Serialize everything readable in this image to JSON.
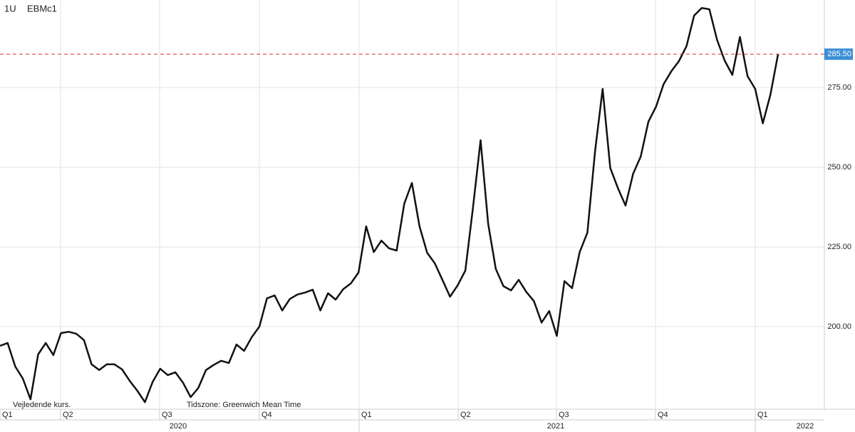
{
  "chart_data": {
    "type": "line",
    "interval": "1U",
    "symbol": "EBMc1",
    "note": "Vejledende kurs.",
    "timezone": "Tidszone: Greenwich Mean Time",
    "color": "#111111",
    "grid": true,
    "values": [
      194.0,
      194.9,
      187.5,
      183.7,
      177.2,
      191.3,
      194.9,
      191.1,
      198.0,
      198.4,
      197.8,
      195.8,
      188.2,
      186.4,
      188.2,
      188.2,
      186.6,
      183.0,
      179.9,
      176.3,
      182.6,
      186.8,
      184.8,
      185.7,
      182.4,
      177.9,
      180.8,
      186.4,
      188.0,
      189.3,
      188.6,
      194.4,
      192.4,
      196.7,
      200.0,
      208.9,
      209.8,
      205.1,
      208.7,
      210.1,
      210.7,
      211.6,
      205.1,
      210.5,
      208.5,
      211.8,
      213.6,
      217.0,
      231.5,
      223.4,
      227.0,
      224.6,
      223.9,
      238.6,
      245.1,
      231.5,
      223.2,
      219.9,
      214.7,
      209.4,
      213.0,
      217.6,
      237.3,
      258.5,
      232.2,
      218.1,
      212.7,
      211.4,
      214.7,
      210.9,
      208.0,
      201.3,
      204.9,
      197.1,
      214.3,
      212.1,
      223.4,
      229.5,
      254.9,
      274.6,
      249.8,
      243.5,
      238.0,
      248.0,
      253.4,
      264.3,
      269.0,
      276.1,
      280.1,
      283.3,
      288.0,
      297.6,
      300.0,
      299.6,
      290.0,
      283.5,
      279.0,
      290.9,
      278.6,
      274.6,
      263.8,
      272.8,
      285.5
    ],
    "ylim": [
      174.1,
      302.5
    ],
    "yticks": [
      {
        "value": 200,
        "label": "200.00"
      },
      {
        "value": 225,
        "label": "225.00"
      },
      {
        "value": 250,
        "label": "250.00"
      },
      {
        "value": 275,
        "label": "275.00"
      }
    ],
    "last_price": {
      "value": 285.5,
      "label": "285.50"
    },
    "quarters": [
      "Q1",
      "Q2",
      "Q3",
      "Q4",
      "Q1",
      "Q2",
      "Q3",
      "Q4",
      "Q1"
    ],
    "years": [
      "2020",
      "2021",
      "2022"
    ]
  }
}
